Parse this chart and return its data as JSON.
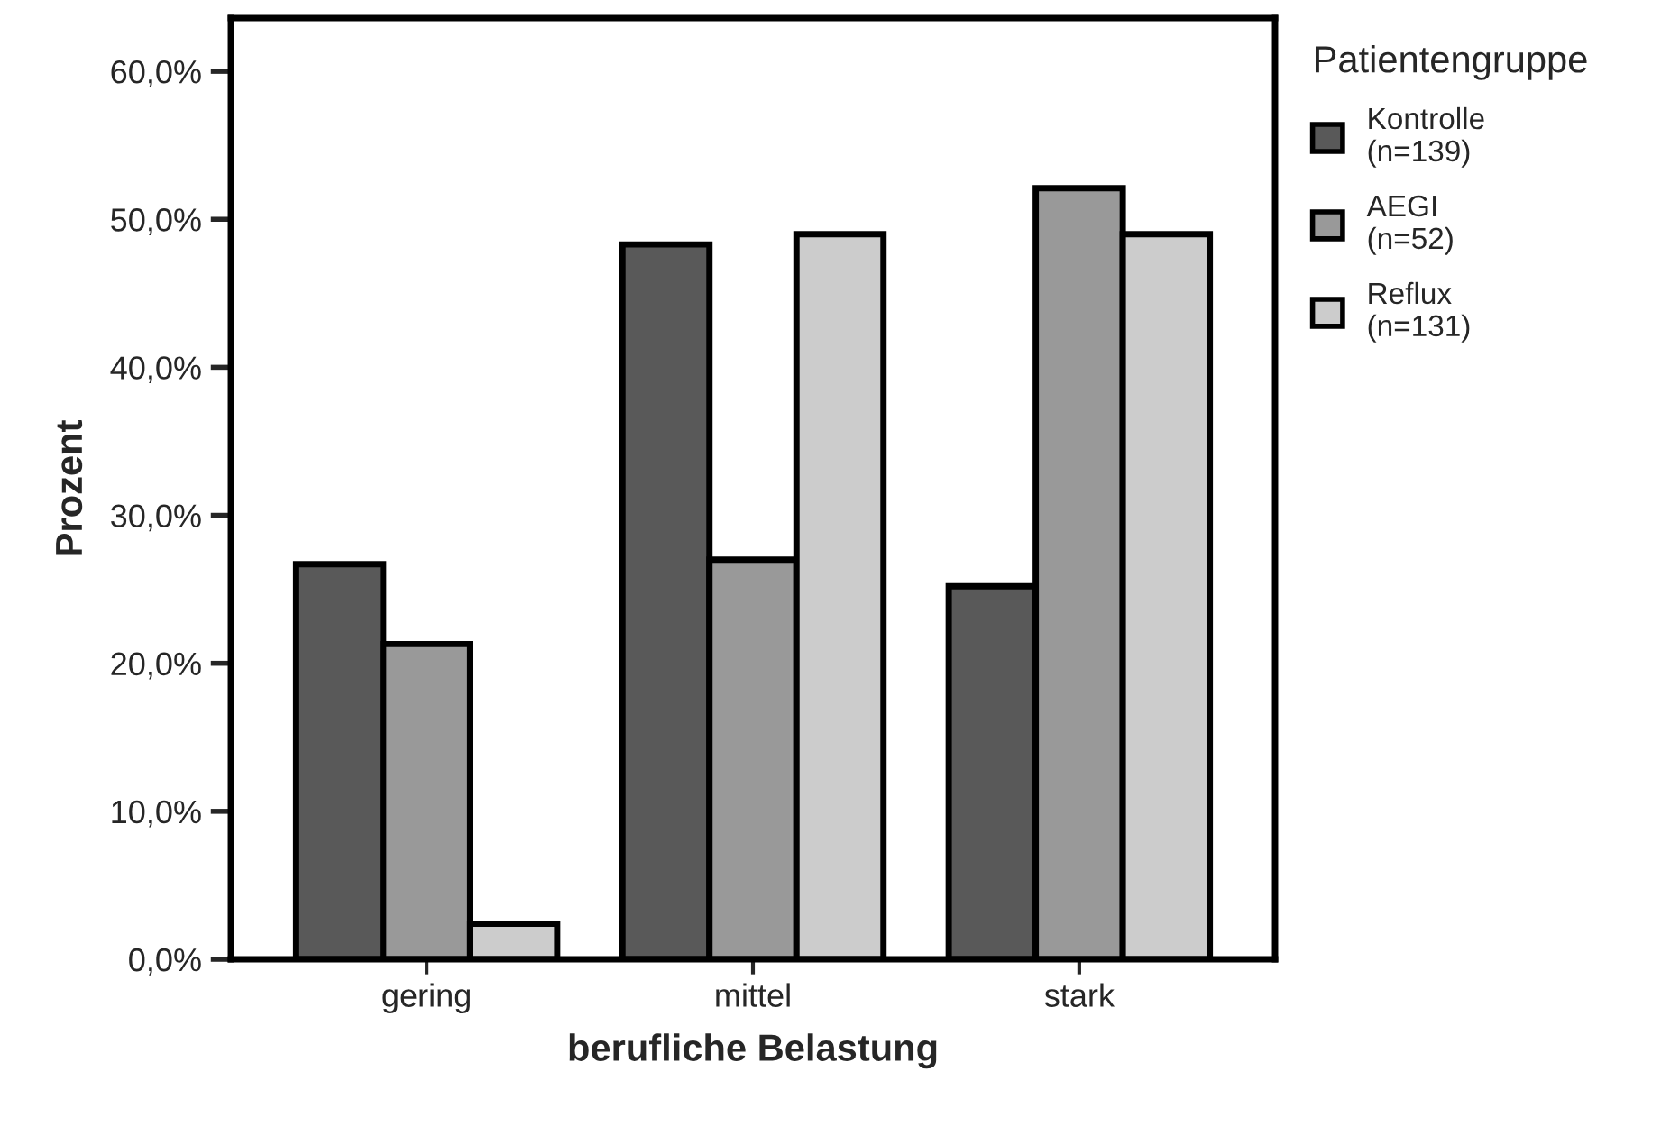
{
  "chart_data": {
    "type": "bar",
    "xlabel": "berufliche Belastung",
    "ylabel": "Prozent",
    "legend_title": "Patientengruppe",
    "categories": [
      "gering",
      "mittel",
      "stark"
    ],
    "series": [
      {
        "name": "Kontrolle\n(n=139)",
        "color": "#595959",
        "values": [
          26.7,
          48.3,
          25.2
        ]
      },
      {
        "name": "AEGI\n(n=52)",
        "color": "#999999",
        "values": [
          21.3,
          27.0,
          52.1
        ]
      },
      {
        "name": "Reflux\n(n=131)",
        "color": "#cccccc",
        "values": [
          2.4,
          49.0,
          49.0
        ]
      }
    ],
    "ylim": [
      0,
      63.6
    ],
    "yticks": [
      {
        "value": 0,
        "label": "0,0%"
      },
      {
        "value": 10,
        "label": "10,0%"
      },
      {
        "value": 20,
        "label": "20,0%"
      },
      {
        "value": 30,
        "label": "30,0%"
      },
      {
        "value": 40,
        "label": "40,0%"
      },
      {
        "value": 50,
        "label": "50,0%"
      },
      {
        "value": 60,
        "label": "60,0%"
      }
    ],
    "grid": false,
    "legend": "right"
  }
}
